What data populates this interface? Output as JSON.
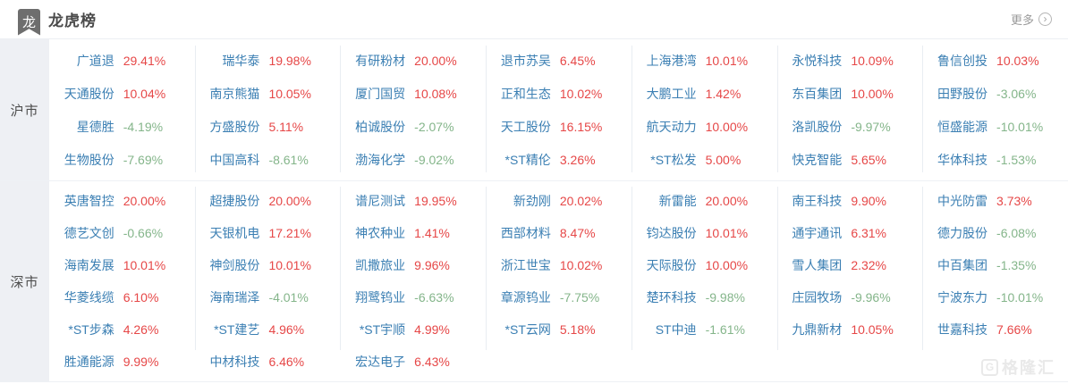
{
  "header": {
    "logo_char": "龙",
    "title": "龙虎榜",
    "more_label": "更多",
    "more_icon": "›"
  },
  "colors": {
    "name_blue": "#3b7fb3",
    "up_red": "#e64747",
    "down_green": "#84b58a"
  },
  "sections": [
    {
      "id": "sh",
      "label": "沪市",
      "columns": [
        [
          {
            "name": "广道退",
            "pct": "29.41%"
          },
          {
            "name": "天通股份",
            "pct": "10.04%"
          },
          {
            "name": "星德胜",
            "pct": "-4.19%"
          },
          {
            "name": "生物股份",
            "pct": "-7.69%"
          }
        ],
        [
          {
            "name": "瑞华泰",
            "pct": "19.98%"
          },
          {
            "name": "南京熊猫",
            "pct": "10.05%"
          },
          {
            "name": "方盛股份",
            "pct": "5.11%"
          },
          {
            "name": "中国高科",
            "pct": "-8.61%"
          }
        ],
        [
          {
            "name": "有研粉材",
            "pct": "20.00%"
          },
          {
            "name": "厦门国贸",
            "pct": "10.08%"
          },
          {
            "name": "柏诚股份",
            "pct": "-2.07%"
          },
          {
            "name": "渤海化学",
            "pct": "-9.02%"
          }
        ],
        [
          {
            "name": "退市苏吴",
            "pct": "6.45%"
          },
          {
            "name": "正和生态",
            "pct": "10.02%"
          },
          {
            "name": "天工股份",
            "pct": "16.15%"
          },
          {
            "name": "*ST精伦",
            "pct": "3.26%"
          }
        ],
        [
          {
            "name": "上海港湾",
            "pct": "10.01%"
          },
          {
            "name": "大鹏工业",
            "pct": "1.42%"
          },
          {
            "name": "航天动力",
            "pct": "10.00%"
          },
          {
            "name": "*ST松发",
            "pct": "5.00%"
          }
        ],
        [
          {
            "name": "永悦科技",
            "pct": "10.09%"
          },
          {
            "name": "东百集团",
            "pct": "10.00%"
          },
          {
            "name": "洛凯股份",
            "pct": "-9.97%"
          },
          {
            "name": "快克智能",
            "pct": "5.65%"
          }
        ],
        [
          {
            "name": "鲁信创投",
            "pct": "10.03%"
          },
          {
            "name": "田野股份",
            "pct": "-3.06%"
          },
          {
            "name": "恒盛能源",
            "pct": "-10.01%"
          },
          {
            "name": "华体科技",
            "pct": "-1.53%"
          }
        ]
      ]
    },
    {
      "id": "sz",
      "label": "深市",
      "columns": [
        [
          {
            "name": "英唐智控",
            "pct": "20.00%"
          },
          {
            "name": "德艺文创",
            "pct": "-0.66%"
          },
          {
            "name": "海南发展",
            "pct": "10.01%"
          },
          {
            "name": "华菱线缆",
            "pct": "6.10%"
          },
          {
            "name": "*ST步森",
            "pct": "4.26%"
          },
          {
            "name": "胜通能源",
            "pct": "9.99%"
          }
        ],
        [
          {
            "name": "超捷股份",
            "pct": "20.00%"
          },
          {
            "name": "天银机电",
            "pct": "17.21%"
          },
          {
            "name": "神剑股份",
            "pct": "10.01%"
          },
          {
            "name": "海南瑞泽",
            "pct": "-4.01%"
          },
          {
            "name": "*ST建艺",
            "pct": "4.96%"
          },
          {
            "name": "中材科技",
            "pct": "6.46%"
          }
        ],
        [
          {
            "name": "谱尼测试",
            "pct": "19.95%"
          },
          {
            "name": "神农种业",
            "pct": "1.41%"
          },
          {
            "name": "凯撒旅业",
            "pct": "9.96%"
          },
          {
            "name": "翔鹭钨业",
            "pct": "-6.63%"
          },
          {
            "name": "*ST宇顺",
            "pct": "4.99%"
          },
          {
            "name": "宏达电子",
            "pct": "6.43%"
          }
        ],
        [
          {
            "name": "新劲刚",
            "pct": "20.02%"
          },
          {
            "name": "西部材料",
            "pct": "8.47%"
          },
          {
            "name": "浙江世宝",
            "pct": "10.02%"
          },
          {
            "name": "章源钨业",
            "pct": "-7.75%"
          },
          {
            "name": "*ST云网",
            "pct": "5.18%"
          }
        ],
        [
          {
            "name": "新雷能",
            "pct": "20.00%"
          },
          {
            "name": "钧达股份",
            "pct": "10.01%"
          },
          {
            "name": "天际股份",
            "pct": "10.00%"
          },
          {
            "name": "楚环科技",
            "pct": "-9.98%"
          },
          {
            "name": "ST中迪",
            "pct": "-1.61%"
          }
        ],
        [
          {
            "name": "南王科技",
            "pct": "9.90%"
          },
          {
            "name": "通宇通讯",
            "pct": "6.31%"
          },
          {
            "name": "雪人集团",
            "pct": "2.32%"
          },
          {
            "name": "庄园牧场",
            "pct": "-9.96%"
          },
          {
            "name": "九鼎新材",
            "pct": "10.05%"
          }
        ],
        [
          {
            "name": "中光防雷",
            "pct": "3.73%"
          },
          {
            "name": "德力股份",
            "pct": "-6.08%"
          },
          {
            "name": "中百集团",
            "pct": "-1.35%"
          },
          {
            "name": "宁波东力",
            "pct": "-10.01%"
          },
          {
            "name": "世嘉科技",
            "pct": "7.66%"
          }
        ]
      ]
    }
  ],
  "watermark": {
    "icon": "G",
    "text": "格隆汇"
  }
}
